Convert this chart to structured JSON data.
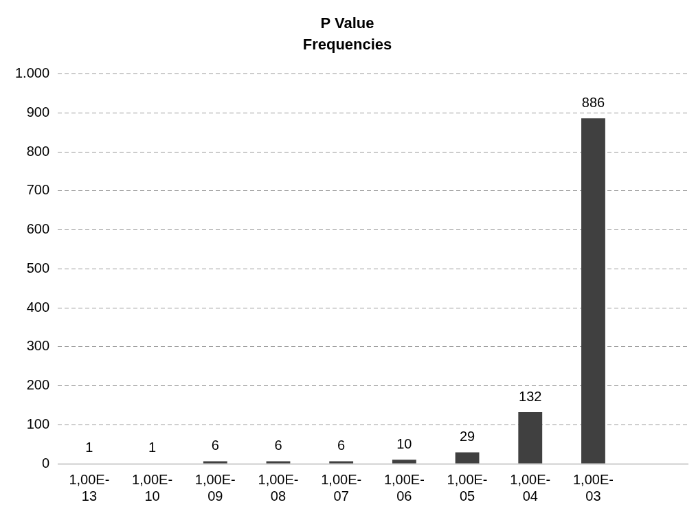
{
  "chart_data": {
    "type": "bar",
    "title": "P Value\nFrequencies",
    "categories": [
      "1,00E-13",
      "1,00E-10",
      "1,00E-09",
      "1,00E-08",
      "1,00E-07",
      "1,00E-06",
      "1,00E-05",
      "1,00E-04",
      "1,00E-03",
      null
    ],
    "values": [
      1,
      1,
      6,
      6,
      6,
      10,
      29,
      132,
      886,
      null
    ],
    "color": "#404040",
    "ylim": [
      0,
      1000
    ],
    "yticks": [
      0,
      100,
      200,
      300,
      400,
      500,
      600,
      700,
      800,
      900,
      {
        "value": 1000,
        "label": "1.000"
      }
    ],
    "grid": "y",
    "data_labels": true,
    "legend": false
  }
}
